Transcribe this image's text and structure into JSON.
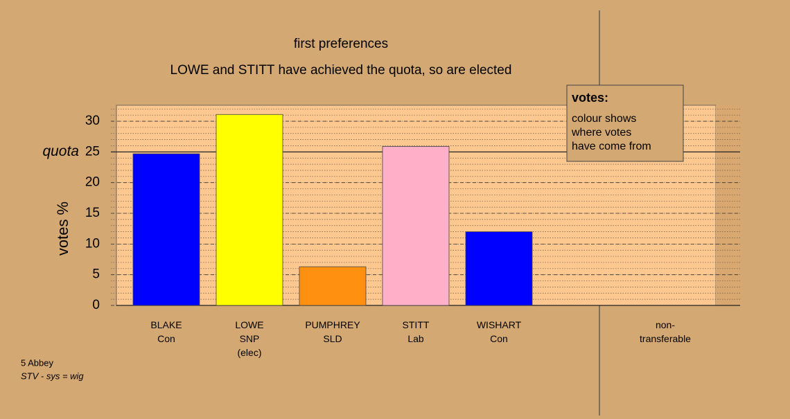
{
  "chart_data": {
    "type": "bar",
    "title": "first preferences",
    "subtitle": "LOWE and STITT have achieved the quota, so are elected",
    "y_label": "votes %",
    "categories": [
      [
        "BLAKE",
        "Con"
      ],
      [
        "LOWE",
        "SNP",
        "(elec)"
      ],
      [
        "PUMPHREY",
        "SLD"
      ],
      [
        "STITT",
        "Lab"
      ],
      [
        "WISHART",
        "Con"
      ],
      null,
      [
        "non-",
        "transferable"
      ]
    ],
    "values": [
      24.7,
      31.1,
      6.3,
      25.9,
      12.0,
      null,
      null
    ],
    "colors": [
      "#0000ff",
      "#ffff00",
      "#ff9010",
      "#ffb0c8",
      "#0000ff",
      null,
      null
    ],
    "ylim": [
      0,
      32.6
    ],
    "yticks": [
      0,
      5,
      10,
      15,
      20,
      25,
      30
    ],
    "grid": true,
    "minor_grid_step": 1,
    "quota": {
      "value": 25,
      "label": "quota"
    },
    "legend": {
      "title": "votes:",
      "lines": [
        "colour shows",
        "where votes",
        "have come from"
      ]
    },
    "footnote": [
      "5 Abbey",
      "STV - sys = wig"
    ]
  }
}
